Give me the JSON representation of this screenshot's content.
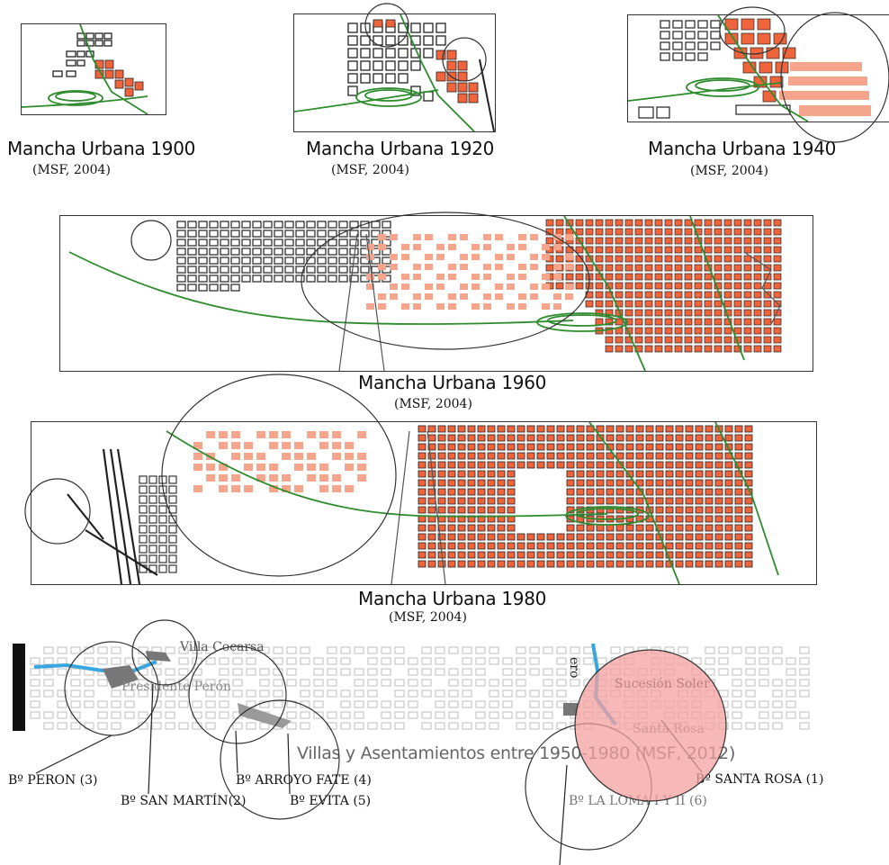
{
  "maps": [
    {
      "caption": "Mancha Urbana 1900",
      "source": "(MSF, 2004)"
    },
    {
      "caption": "Mancha Urbana  1920",
      "source": "(MSF, 2004)"
    },
    {
      "caption": "Mancha Urbana 1940",
      "source": "(MSF, 2004)"
    },
    {
      "caption": "Mancha Urbana  1960",
      "source": "(MSF, 2004)"
    },
    {
      "caption": "Mancha Urbana 1980",
      "source": "(MSF, 2004)"
    }
  ],
  "villas_map": {
    "caption": "Villas y Asentamientos entre 1950-1980 (MSF, 2012)",
    "places": [
      "Villa Cocarsa",
      "Presidente Perón",
      "Sucesión Soler",
      "Santa Rosa",
      "ero"
    ],
    "barrios": [
      "Bº PERON (3)",
      "Bº SAN MARTÍN(2)",
      "Bº ARROYO FATE (4)",
      "Bº  EVITA (5)",
      "Bº LA LOMA I Y II (6)",
      "Bº SANTA ROSA (1)"
    ]
  },
  "colors": {
    "urban": "#f0643c",
    "urban_light": "#f4a58c",
    "rail": "#2e8b2e",
    "grid": "#222222",
    "river": "#3aa6e0",
    "highlight": "#f4a0a0"
  }
}
